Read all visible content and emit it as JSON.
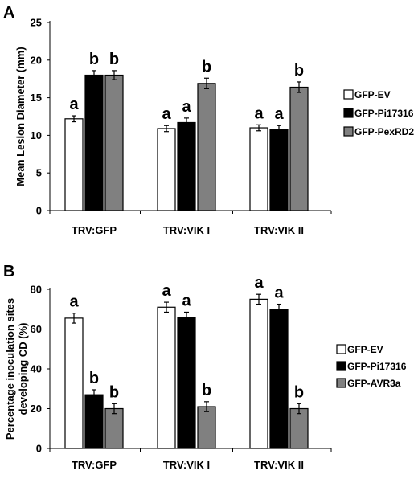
{
  "colors": {
    "GFP-EV": "#ffffff",
    "GFP-Pi17316": "#000000",
    "GFP-PexRD2": "#808080",
    "GFP-AVR3a": "#808080",
    "axis": "#000000"
  },
  "chart_data": [
    {
      "panel_label": "A",
      "type": "bar",
      "ylabel": "Mean Lesion Diameter (mm)",
      "xlabel": "",
      "ylim": [
        0,
        25
      ],
      "yticks": [
        0,
        5,
        10,
        15,
        20,
        25
      ],
      "grid": false,
      "legend_position": "right",
      "categories": [
        "TRV:GFP",
        "TRV:VIK I",
        "TRV:VIK II"
      ],
      "series": [
        {
          "name": "GFP-EV",
          "color": "#ffffff",
          "values": [
            12.2,
            10.9,
            11.0
          ],
          "errors": [
            0.4,
            0.4,
            0.4
          ],
          "sig": [
            "a",
            "a",
            "a"
          ]
        },
        {
          "name": "GFP-Pi17316",
          "color": "#000000",
          "values": [
            18.0,
            11.7,
            10.8
          ],
          "errors": [
            0.6,
            0.6,
            0.5
          ],
          "sig": [
            "b",
            "a",
            "a"
          ]
        },
        {
          "name": "GFP-PexRD2",
          "color": "#808080",
          "values": [
            18.0,
            16.9,
            16.4
          ],
          "errors": [
            0.6,
            0.7,
            0.7
          ],
          "sig": [
            "b",
            "b",
            "b"
          ]
        }
      ]
    },
    {
      "panel_label": "B",
      "type": "bar",
      "ylabel": "Percentage inoculation sites developing CD (%)",
      "ylabel_lines": [
        "Percentage inoculation sites",
        "developing CD (%)"
      ],
      "xlabel": "",
      "ylim": [
        0,
        80
      ],
      "yticks": [
        0,
        20,
        40,
        60,
        80
      ],
      "grid": false,
      "legend_position": "right",
      "categories": [
        "TRV:GFP",
        "TRV:VIK I",
        "TRV:VIK II"
      ],
      "series": [
        {
          "name": "GFP-EV",
          "color": "#ffffff",
          "values": [
            65.5,
            71.0,
            75.0
          ],
          "errors": [
            2.5,
            2.5,
            2.5
          ],
          "sig": [
            "a",
            "a",
            "a"
          ]
        },
        {
          "name": "GFP-Pi17316",
          "color": "#000000",
          "values": [
            27.0,
            66.0,
            70.0
          ],
          "errors": [
            2.5,
            2.5,
            2.5
          ],
          "sig": [
            "b",
            "a",
            "a"
          ]
        },
        {
          "name": "GFP-AVR3a",
          "color": "#808080",
          "values": [
            20.0,
            21.0,
            20.0
          ],
          "errors": [
            2.5,
            2.5,
            2.5
          ],
          "sig": [
            "b",
            "b",
            "b"
          ]
        }
      ]
    }
  ]
}
